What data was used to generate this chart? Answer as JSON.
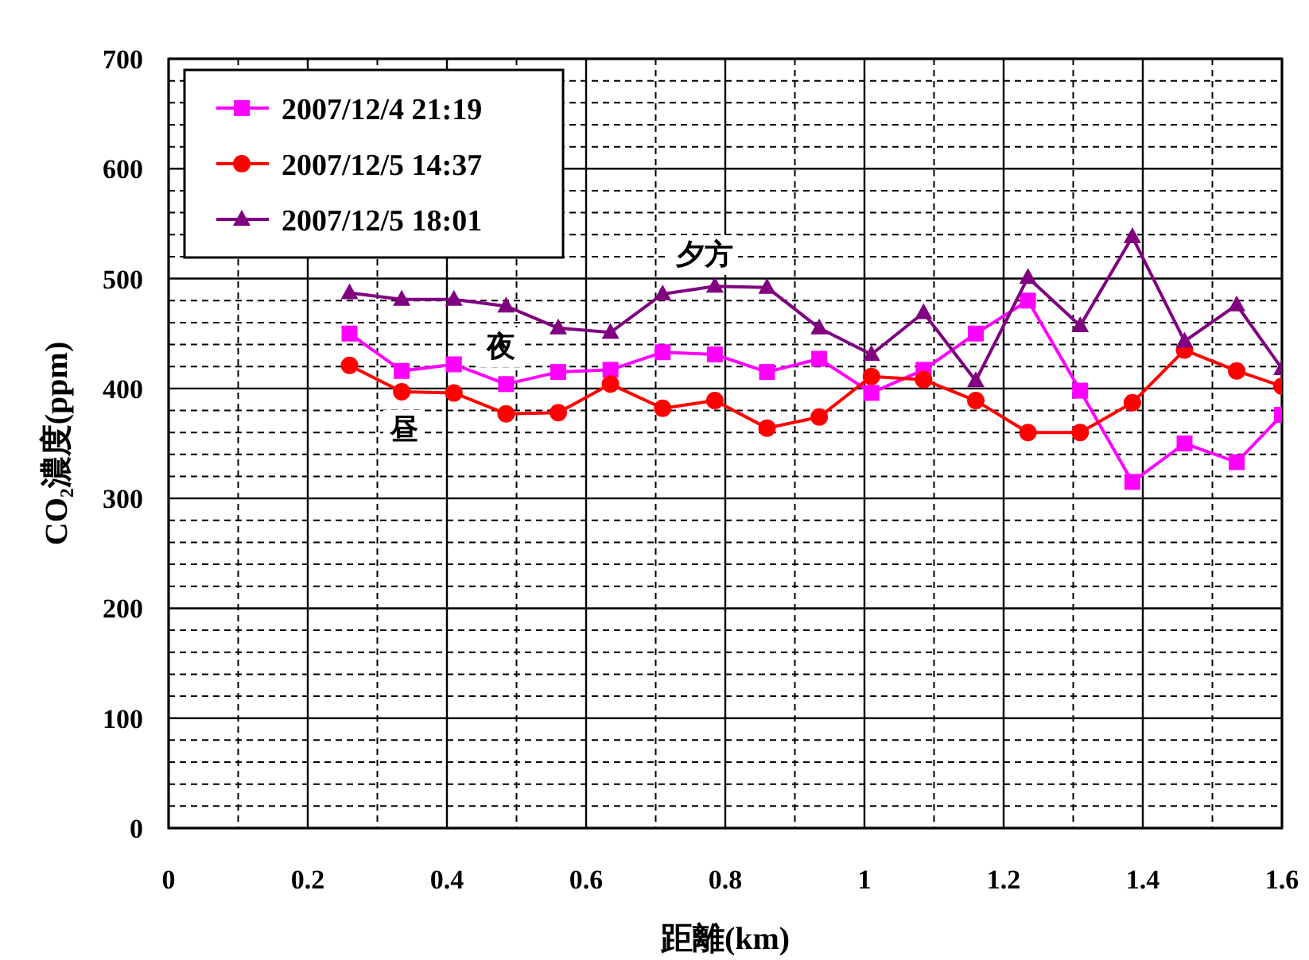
{
  "chart_data": {
    "type": "line",
    "xlabel": "距離(km)",
    "ylabel": "CO₂濃度(ppm)",
    "x": [
      0.26,
      0.335,
      0.41,
      0.485,
      0.56,
      0.635,
      0.71,
      0.785,
      0.86,
      0.935,
      1.01,
      1.085,
      1.16,
      1.235,
      1.31,
      1.385,
      1.46,
      1.535,
      1.6
    ],
    "series": [
      {
        "name": "2007/12/4 21:19",
        "color": "#ff00ff",
        "marker": "square",
        "values": [
          450,
          416,
          422,
          404,
          415,
          417,
          433,
          431,
          415,
          427,
          396,
          417,
          450,
          480,
          398,
          315,
          350,
          333,
          376
        ]
      },
      {
        "name": "2007/12/5 14:37",
        "color": "#ff0000",
        "marker": "circle",
        "values": [
          421,
          397,
          396,
          377,
          378,
          404,
          382,
          389,
          364,
          374,
          411,
          408,
          389,
          360,
          360,
          387,
          435,
          416,
          402
        ]
      },
      {
        "name": "2007/12/5 18:01",
        "color": "#800080",
        "marker": "triangle",
        "values": [
          487,
          481,
          481,
          475,
          455,
          451,
          486,
          493,
          492,
          455,
          431,
          469,
          407,
          501,
          457,
          538,
          443,
          476,
          418
        ]
      }
    ],
    "xlim": [
      0,
      1.6
    ],
    "xticks": [
      0,
      0.2,
      0.4,
      0.6,
      0.8,
      1,
      1.2,
      1.4,
      1.6
    ],
    "ylim": [
      0,
      700
    ],
    "yticks": [
      0,
      100,
      200,
      300,
      400,
      500,
      600,
      700
    ],
    "grid": true,
    "legend": "top left",
    "line_style": "solid",
    "annotations": [
      "夕方",
      "夜",
      "昼"
    ]
  }
}
